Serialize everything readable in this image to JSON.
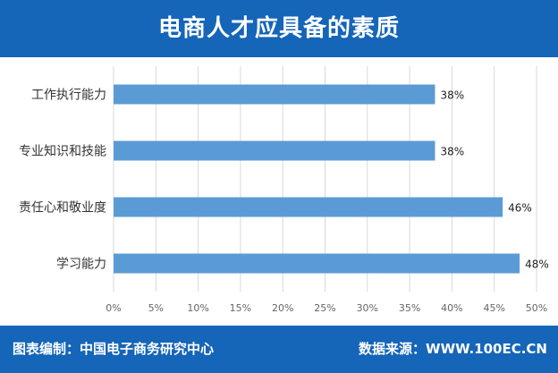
{
  "header": {
    "title": "电商人才应具备的素质"
  },
  "footer": {
    "left": "图表编制：中国电子商务研究中心",
    "right": "数据来源：WWW.100EC.CN"
  },
  "colors": {
    "header_bg": "#1565b8",
    "bar": "#5b9bd5",
    "grid": "#d9d9d9"
  },
  "chart_data": {
    "type": "bar",
    "orientation": "horizontal",
    "title": "电商人才应具备的素质",
    "categories": [
      "工作执行能力",
      "专业知识和技能",
      "责任心和敬业度",
      "学习能力"
    ],
    "values": [
      38,
      38,
      46,
      48
    ],
    "value_labels": [
      "38%",
      "38%",
      "46%",
      "48%"
    ],
    "xlim": [
      0,
      50
    ],
    "x_ticks": [
      "0%",
      "5%",
      "10%",
      "15%",
      "20%",
      "25%",
      "30%",
      "35%",
      "40%",
      "45%",
      "50%"
    ],
    "grid": true,
    "legend": "none"
  }
}
